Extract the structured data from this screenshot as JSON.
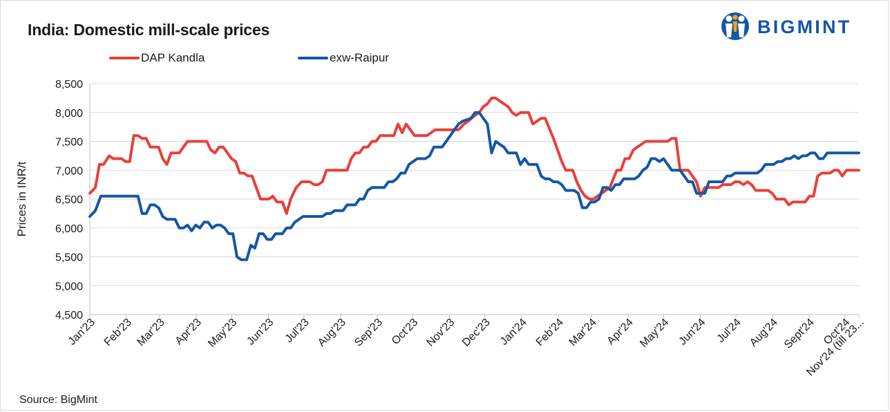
{
  "chart_data": {
    "type": "line",
    "title": "India: Domestic mill-scale prices",
    "ylabel": "Prices in INR/t",
    "xlabel": "",
    "ylim": [
      4500,
      8500
    ],
    "yticks": [
      4500,
      5000,
      5500,
      6000,
      6500,
      7000,
      7500,
      8000,
      8500
    ],
    "ytick_labels": [
      "4,500",
      "5,000",
      "5,500",
      "6,000",
      "6,500",
      "7,000",
      "7,500",
      "8,000",
      "8,500"
    ],
    "x_tick_labels": [
      "Jan'23",
      "Feb'23",
      "Mar'23",
      "Apr'23",
      "May'23",
      "Jun'23",
      "Jul'23",
      "Aug'23",
      "Sep'23",
      "Oct'23",
      "Nov'23",
      "Dec'23",
      "Jan'24",
      "Feb'24",
      "Mar'24",
      "Apr'24",
      "May'24",
      "Jun'24",
      "Jul'24",
      "Aug'24",
      "Sept'24",
      "Oct'24",
      "Nov'24 (till 23..."
    ],
    "x_period_fraction": [
      0,
      0.0477,
      0.0907,
      0.1384,
      0.1846,
      0.2323,
      0.2785,
      0.3262,
      0.3739,
      0.42,
      0.4677,
      0.5139,
      0.5616,
      0.6093,
      0.6523,
      0.7,
      0.7462,
      0.7939,
      0.84,
      0.8877,
      0.9354,
      0.9816,
      1.0
    ],
    "grid": true,
    "legend_position": "top",
    "series": [
      {
        "name": "DAP Kandla",
        "color": "#e8403a",
        "points": [
          [
            0,
            6600
          ],
          [
            0.4,
            6700
          ],
          [
            0.7,
            7100
          ],
          [
            1,
            7100
          ],
          [
            1.4,
            7250
          ],
          [
            1.7,
            7200
          ],
          [
            2.3,
            7200
          ],
          [
            2.6,
            7150
          ],
          [
            2.9,
            7150
          ],
          [
            3.2,
            7600
          ],
          [
            3.5,
            7600
          ],
          [
            3.8,
            7550
          ],
          [
            4.1,
            7550
          ],
          [
            4.4,
            7400
          ],
          [
            5,
            7400
          ],
          [
            5.3,
            7200
          ],
          [
            5.6,
            7100
          ],
          [
            5.9,
            7300
          ],
          [
            6.5,
            7300
          ],
          [
            6.8,
            7400
          ],
          [
            7.1,
            7500
          ],
          [
            8.5,
            7500
          ],
          [
            8.8,
            7350
          ],
          [
            9.1,
            7300
          ],
          [
            9.4,
            7400
          ],
          [
            9.7,
            7400
          ],
          [
            10.3,
            7200
          ],
          [
            10.6,
            7150
          ],
          [
            10.9,
            6950
          ],
          [
            11.2,
            6950
          ],
          [
            11.5,
            6900
          ],
          [
            11.8,
            6900
          ],
          [
            12.1,
            6700
          ],
          [
            12.4,
            6500
          ],
          [
            13,
            6500
          ],
          [
            13.3,
            6550
          ],
          [
            13.6,
            6450
          ],
          [
            14,
            6450
          ],
          [
            14.3,
            6250
          ],
          [
            14.6,
            6500
          ],
          [
            15,
            6700
          ],
          [
            15.4,
            6800
          ],
          [
            16,
            6800
          ],
          [
            16.3,
            6750
          ],
          [
            16.6,
            6750
          ],
          [
            16.9,
            6800
          ],
          [
            17.2,
            7000
          ],
          [
            17.5,
            7000
          ],
          [
            18.5,
            7000
          ],
          [
            18.7,
            7000
          ],
          [
            19,
            7200
          ],
          [
            19.3,
            7300
          ],
          [
            19.6,
            7300
          ],
          [
            19.9,
            7400
          ],
          [
            20.2,
            7400
          ],
          [
            20.5,
            7500
          ],
          [
            20.8,
            7500
          ],
          [
            21.1,
            7600
          ],
          [
            22.1,
            7600
          ],
          [
            22.4,
            7800
          ],
          [
            22.7,
            7650
          ],
          [
            23,
            7800
          ],
          [
            23.3,
            7700
          ],
          [
            23.6,
            7600
          ],
          [
            24.5,
            7600
          ],
          [
            24.8,
            7650
          ],
          [
            25.1,
            7700
          ],
          [
            26.8,
            7700
          ],
          [
            27.2,
            7800
          ],
          [
            27.5,
            7850
          ],
          [
            28,
            7950
          ],
          [
            28.3,
            8000
          ],
          [
            28.6,
            8100
          ],
          [
            28.9,
            8150
          ],
          [
            29.2,
            8250
          ],
          [
            29.5,
            8250
          ],
          [
            29.8,
            8200
          ],
          [
            30.1,
            8150
          ],
          [
            30.4,
            8100
          ],
          [
            30.7,
            8000
          ],
          [
            31,
            7950
          ],
          [
            31.3,
            8000
          ],
          [
            31.9,
            8000
          ],
          [
            32.2,
            7800
          ],
          [
            32.5,
            7850
          ],
          [
            32.8,
            7900
          ],
          [
            33.1,
            7900
          ],
          [
            33.7,
            7550
          ],
          [
            34,
            7350
          ],
          [
            34.3,
            7150
          ],
          [
            34.6,
            7000
          ],
          [
            35.1,
            7000
          ],
          [
            35.4,
            6800
          ],
          [
            35.7,
            6650
          ],
          [
            36,
            6550
          ],
          [
            36.3,
            6500
          ],
          [
            36.6,
            6500
          ],
          [
            36.9,
            6550
          ],
          [
            37.2,
            6600
          ],
          [
            37.5,
            6650
          ],
          [
            37.8,
            6700
          ],
          [
            38.3,
            7000
          ],
          [
            38.6,
            7000
          ],
          [
            38.9,
            7200
          ],
          [
            39.2,
            7200
          ],
          [
            39.5,
            7350
          ],
          [
            39.8,
            7400
          ],
          [
            40.1,
            7450
          ],
          [
            40.4,
            7500
          ],
          [
            41.3,
            7500
          ],
          [
            42,
            7500
          ],
          [
            42.3,
            7550
          ],
          [
            42.6,
            7550
          ],
          [
            42.9,
            7000
          ],
          [
            43.5,
            7000
          ],
          [
            44.1,
            6800
          ],
          [
            44.4,
            6550
          ],
          [
            44.7,
            6700
          ],
          [
            45,
            6700
          ],
          [
            45.7,
            6700
          ],
          [
            46,
            6750
          ],
          [
            46.6,
            6750
          ],
          [
            46.9,
            6800
          ],
          [
            47.2,
            6800
          ],
          [
            47.5,
            6750
          ],
          [
            47.8,
            6800
          ],
          [
            48.1,
            6750
          ],
          [
            48.4,
            6650
          ],
          [
            49.3,
            6650
          ],
          [
            49.6,
            6600
          ],
          [
            49.9,
            6500
          ],
          [
            50.5,
            6500
          ],
          [
            50.8,
            6400
          ],
          [
            51.1,
            6450
          ],
          [
            52,
            6450
          ],
          [
            52.3,
            6550
          ],
          [
            52.6,
            6550
          ],
          [
            52.9,
            6900
          ],
          [
            53.2,
            6950
          ],
          [
            53.8,
            6950
          ],
          [
            54.1,
            7000
          ],
          [
            54.4,
            7000
          ],
          [
            54.7,
            6900
          ],
          [
            55,
            7000
          ],
          [
            55.9,
            7000
          ]
        ]
      },
      {
        "name": "exw-Raipur",
        "color": "#1357a6",
        "points": [
          [
            0,
            6200
          ],
          [
            0.4,
            6300
          ],
          [
            0.8,
            6550
          ],
          [
            1.1,
            6550
          ],
          [
            3.2,
            6550
          ],
          [
            3.5,
            6550
          ],
          [
            3.8,
            6250
          ],
          [
            4.1,
            6250
          ],
          [
            4.4,
            6400
          ],
          [
            4.7,
            6400
          ],
          [
            5,
            6350
          ],
          [
            5.3,
            6200
          ],
          [
            5.6,
            6150
          ],
          [
            6.2,
            6150
          ],
          [
            6.5,
            6000
          ],
          [
            6.8,
            6000
          ],
          [
            7.1,
            6050
          ],
          [
            7.4,
            5950
          ],
          [
            7.7,
            6050
          ],
          [
            8,
            6000
          ],
          [
            8.3,
            6100
          ],
          [
            8.6,
            6100
          ],
          [
            8.9,
            6000
          ],
          [
            9.2,
            6050
          ],
          [
            9.5,
            6050
          ],
          [
            9.8,
            6000
          ],
          [
            10.1,
            5900
          ],
          [
            10.4,
            5900
          ],
          [
            10.7,
            5500
          ],
          [
            11,
            5450
          ],
          [
            11.4,
            5450
          ],
          [
            11.7,
            5700
          ],
          [
            12,
            5650
          ],
          [
            12.3,
            5900
          ],
          [
            12.6,
            5900
          ],
          [
            12.9,
            5800
          ],
          [
            13.2,
            5800
          ],
          [
            13.5,
            5900
          ],
          [
            14,
            5900
          ],
          [
            14.3,
            6000
          ],
          [
            14.6,
            6000
          ],
          [
            14.9,
            6100
          ],
          [
            15.2,
            6150
          ],
          [
            15.5,
            6200
          ],
          [
            16.9,
            6200
          ],
          [
            17.2,
            6250
          ],
          [
            17.5,
            6250
          ],
          [
            17.8,
            6300
          ],
          [
            18.4,
            6300
          ],
          [
            18.7,
            6400
          ],
          [
            19.3,
            6400
          ],
          [
            19.6,
            6500
          ],
          [
            19.9,
            6500
          ],
          [
            20.2,
            6650
          ],
          [
            20.5,
            6700
          ],
          [
            21.4,
            6700
          ],
          [
            21.7,
            6800
          ],
          [
            22,
            6800
          ],
          [
            22.3,
            6850
          ],
          [
            22.6,
            6950
          ],
          [
            22.9,
            6950
          ],
          [
            23.2,
            7100
          ],
          [
            23.5,
            7150
          ],
          [
            23.8,
            7200
          ],
          [
            24.4,
            7200
          ],
          [
            24.7,
            7250
          ],
          [
            25,
            7400
          ],
          [
            25.3,
            7400
          ],
          [
            25.6,
            7400
          ],
          [
            25.9,
            7500
          ],
          [
            26.2,
            7600
          ],
          [
            26.5,
            7700
          ],
          [
            26.8,
            7800
          ],
          [
            27.1,
            7850
          ],
          [
            27.7,
            7900
          ],
          [
            28,
            8000
          ],
          [
            28.3,
            8000
          ],
          [
            28.6,
            7900
          ],
          [
            28.9,
            7800
          ],
          [
            29.2,
            7300
          ],
          [
            29.5,
            7500
          ],
          [
            29.8,
            7450
          ],
          [
            30.1,
            7400
          ],
          [
            30.4,
            7300
          ],
          [
            31,
            7300
          ],
          [
            31.3,
            7100
          ],
          [
            31.6,
            7200
          ],
          [
            31.9,
            7100
          ],
          [
            32.5,
            7100
          ],
          [
            32.8,
            6900
          ],
          [
            33.1,
            6850
          ],
          [
            33.4,
            6850
          ],
          [
            33.7,
            6800
          ],
          [
            34,
            6800
          ],
          [
            34.3,
            6750
          ],
          [
            34.6,
            6650
          ],
          [
            35.2,
            6650
          ],
          [
            35.5,
            6600
          ],
          [
            35.8,
            6350
          ],
          [
            36.1,
            6350
          ],
          [
            36.4,
            6450
          ],
          [
            36.7,
            6450
          ],
          [
            37,
            6500
          ],
          [
            37.3,
            6700
          ],
          [
            37.6,
            6700
          ],
          [
            37.9,
            6650
          ],
          [
            38.2,
            6750
          ],
          [
            38.5,
            6750
          ],
          [
            38.8,
            6850
          ],
          [
            39.6,
            6850
          ],
          [
            39.9,
            6900
          ],
          [
            40.2,
            7000
          ],
          [
            40.5,
            7050
          ],
          [
            40.8,
            7200
          ],
          [
            41.1,
            7200
          ],
          [
            41.4,
            7150
          ],
          [
            41.7,
            7200
          ],
          [
            42,
            7100
          ],
          [
            42.3,
            7000
          ],
          [
            42.9,
            7000
          ],
          [
            43.2,
            6900
          ],
          [
            43.5,
            6800
          ],
          [
            43.8,
            6800
          ],
          [
            44.1,
            6600
          ],
          [
            44.7,
            6600
          ],
          [
            45,
            6800
          ],
          [
            46,
            6800
          ],
          [
            46.3,
            6900
          ],
          [
            46.6,
            6900
          ],
          [
            46.9,
            6950
          ],
          [
            48.5,
            6950
          ],
          [
            48.8,
            7000
          ],
          [
            49.1,
            7100
          ],
          [
            49.7,
            7100
          ],
          [
            50,
            7150
          ],
          [
            50.3,
            7150
          ],
          [
            50.6,
            7200
          ],
          [
            50.9,
            7200
          ],
          [
            51.2,
            7250
          ],
          [
            51.5,
            7200
          ],
          [
            51.8,
            7250
          ],
          [
            52.1,
            7250
          ],
          [
            52.4,
            7300
          ],
          [
            52.7,
            7300
          ],
          [
            53,
            7200
          ],
          [
            53.3,
            7200
          ],
          [
            53.6,
            7300
          ],
          [
            55.9,
            7300
          ]
        ]
      }
    ]
  },
  "logo": {
    "text": "BIGMINT",
    "color": "#1357a6",
    "icon": "bigmint-people-icon"
  },
  "source": "Source: BigMint"
}
